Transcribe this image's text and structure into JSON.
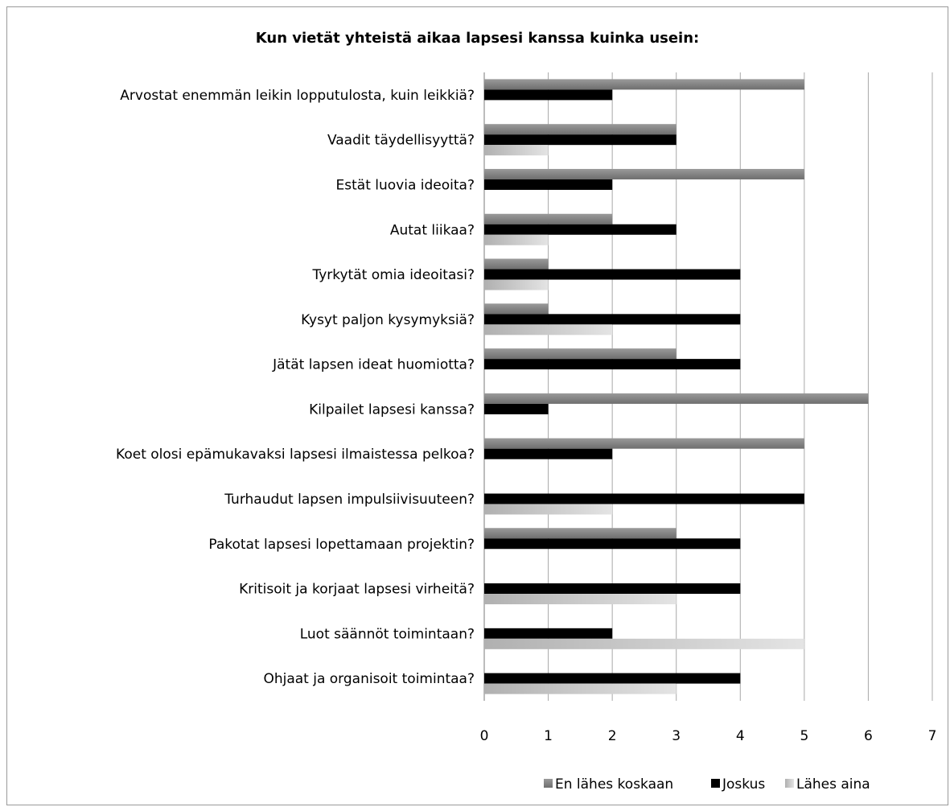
{
  "chart_data": {
    "type": "bar",
    "orientation": "horizontal",
    "title": "Kun vietät yhteistä aikaa lapsesi kanssa kuinka usein:",
    "categories": [
      "Arvostat enemmän leikin lopputulosta, kuin leikkiä?",
      "Vaadit täydellisyyttä?",
      "Estät luovia ideoita?",
      "Autat liikaa?",
      "Tyrkytät omia ideoitasi?",
      "Kysyt paljon kysymyksiä?",
      "Jätät lapsen ideat huomiotta?",
      "Kilpailet lapsesi kanssa?",
      "Koet olosi epämukavaksi lapsesi ilmaistessa pelkoa?",
      "Turhaudut lapsen impulsiivisuuteen?",
      "Pakotat lapsesi lopettamaan projektin?",
      "Kritisoit ja korjaat lapsesi virheitä?",
      "Luot säännöt toimintaan?",
      "Ohjaat ja organisoit toimintaa?"
    ],
    "series": [
      {
        "name": "En lähes koskaan",
        "color": "#808080",
        "values": [
          5,
          3,
          5,
          2,
          1,
          1,
          3,
          6,
          5,
          0,
          3,
          0,
          0,
          0
        ]
      },
      {
        "name": "Joskus",
        "color": "#000000",
        "values": [
          2,
          3,
          2,
          3,
          4,
          4,
          4,
          1,
          2,
          5,
          4,
          4,
          2,
          4
        ]
      },
      {
        "name": "Lähes aina",
        "color": "#c8c8c8",
        "values": [
          0,
          1,
          0,
          1,
          1,
          2,
          0,
          0,
          0,
          2,
          0,
          3,
          5,
          3
        ]
      }
    ],
    "xlim": [
      0,
      7
    ],
    "xticks": [
      "0",
      "1",
      "2",
      "3",
      "4",
      "5",
      "6",
      "7"
    ],
    "grid": true,
    "legend_position": "bottom-right"
  }
}
